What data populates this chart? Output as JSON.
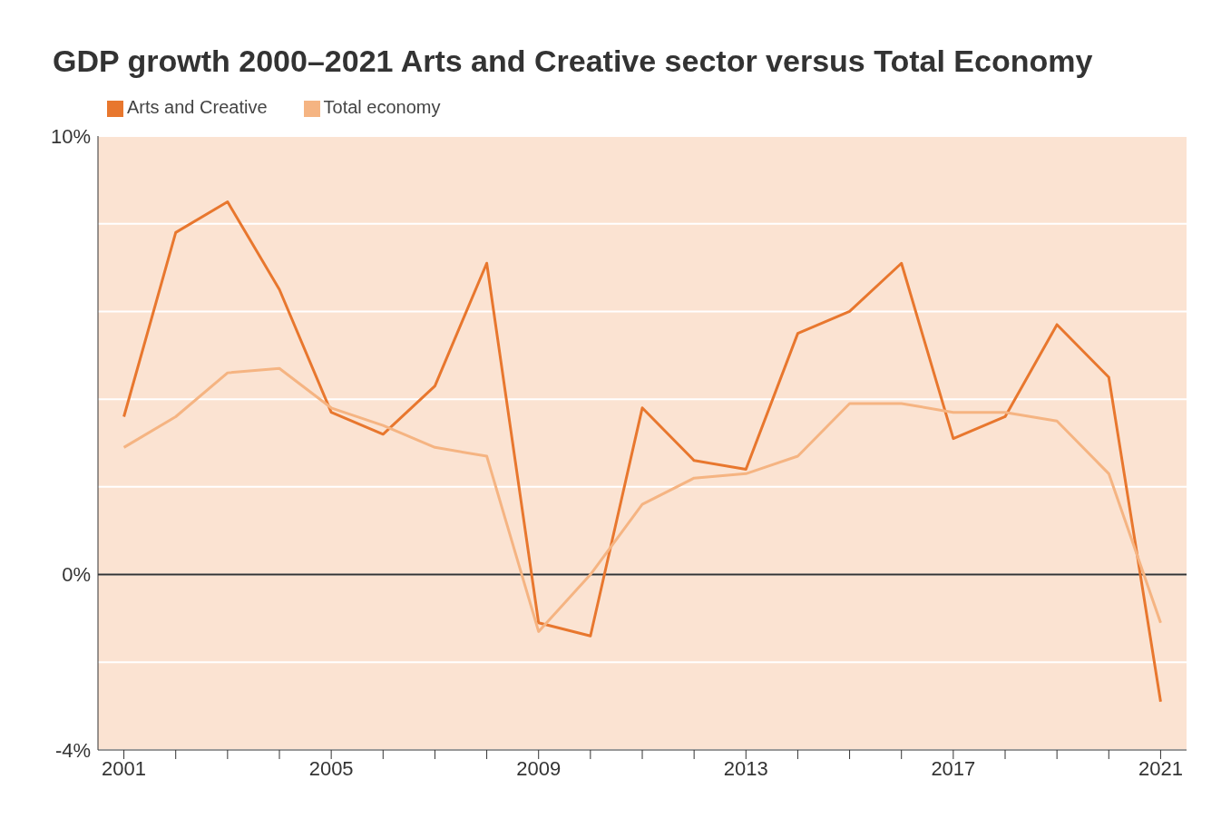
{
  "chart_data": {
    "type": "line",
    "title": "GDP growth 2000–2021 Arts and Creative sector versus Total Economy",
    "x": [
      2001,
      2002,
      2003,
      2004,
      2005,
      2006,
      2007,
      2008,
      2009,
      2010,
      2011,
      2012,
      2013,
      2014,
      2015,
      2016,
      2017,
      2018,
      2019,
      2020,
      2021
    ],
    "series": [
      {
        "name": "Arts and Creative",
        "color": "#e8772e",
        "values": [
          3.6,
          7.8,
          8.5,
          6.5,
          3.7,
          3.2,
          4.3,
          7.1,
          -1.1,
          -1.4,
          3.8,
          2.6,
          2.4,
          5.5,
          6.0,
          7.1,
          3.1,
          3.6,
          5.7,
          4.5,
          -2.9
        ]
      },
      {
        "name": "Total economy",
        "color": "#f5b482",
        "values": [
          2.9,
          3.6,
          4.6,
          4.7,
          3.8,
          3.4,
          2.9,
          2.7,
          -1.3,
          0.0,
          1.6,
          2.2,
          2.3,
          2.7,
          3.9,
          3.9,
          3.7,
          3.7,
          3.5,
          2.3,
          -1.1
        ]
      }
    ],
    "xlim": [
      2000.5,
      2021.5
    ],
    "xticks": [
      2001,
      {
        "value": 2002,
        "label": null
      },
      {
        "value": 2003,
        "label": null
      },
      {
        "value": 2004,
        "label": null
      },
      2005,
      {
        "value": 2006,
        "label": null
      },
      {
        "value": 2007,
        "label": null
      },
      {
        "value": 2008,
        "label": null
      },
      2009,
      {
        "value": 2010,
        "label": null
      },
      {
        "value": 2011,
        "label": null
      },
      {
        "value": 2012,
        "label": null
      },
      2013,
      {
        "value": 2014,
        "label": null
      },
      {
        "value": 2015,
        "label": null
      },
      {
        "value": 2016,
        "label": null
      },
      2017,
      {
        "value": 2018,
        "label": null
      },
      {
        "value": 2019,
        "label": null
      },
      {
        "value": 2020,
        "label": null
      },
      2021
    ],
    "ylim": [
      -4,
      10
    ],
    "yticks": [
      {
        "value": -4,
        "label": "-4%"
      },
      {
        "value": -2,
        "label": null
      },
      {
        "value": 0,
        "label": "0%"
      },
      {
        "value": 2,
        "label": null
      },
      {
        "value": 4,
        "label": null
      },
      {
        "value": 6,
        "label": null
      },
      {
        "value": 8,
        "label": null
      },
      {
        "value": 10,
        "label": "10%"
      }
    ],
    "ref_lines": [
      {
        "axis": "y",
        "value": 0,
        "color": "#333333"
      }
    ],
    "grid": "y",
    "legend": "top left",
    "marker": "none",
    "line_style": "solid"
  }
}
